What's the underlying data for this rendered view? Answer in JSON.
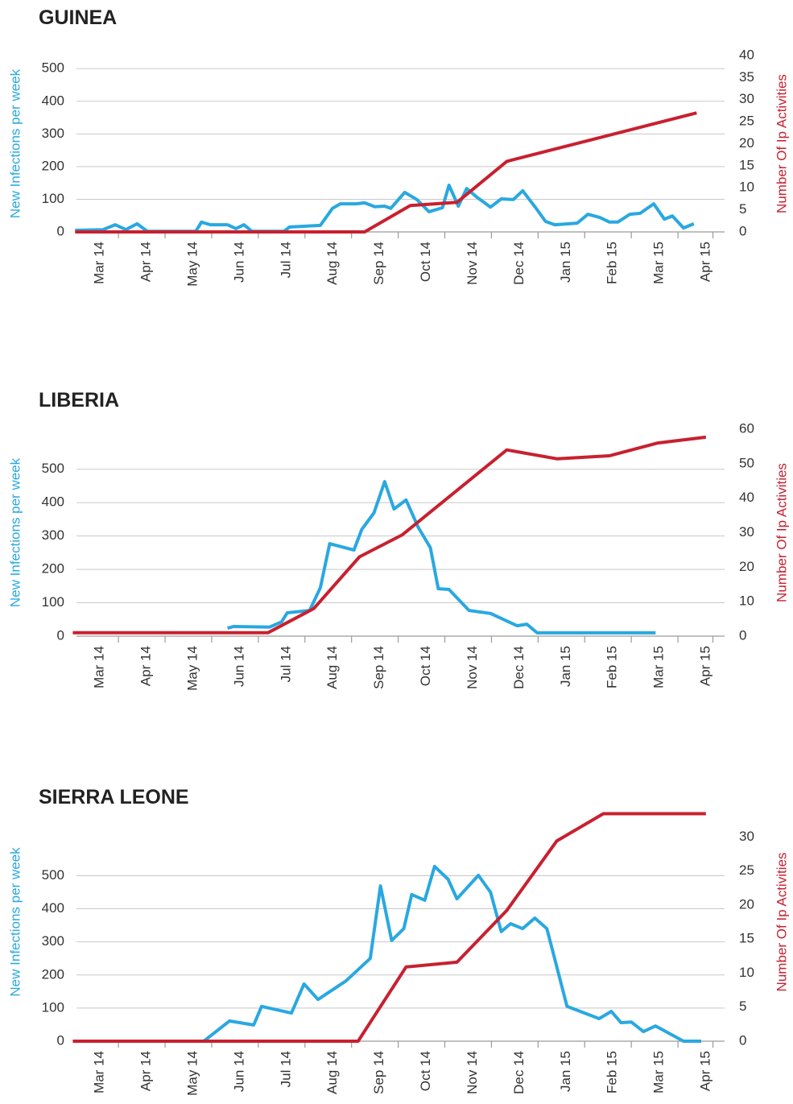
{
  "chart_data": [
    {
      "type": "line",
      "title": "GUINEA",
      "ylabel": "New Infections per week",
      "y2label": "Number Of Ip Activities",
      "xlim": [
        -0.4,
        13.5
      ],
      "xticks": [
        {
          "value": 0,
          "label": "Mar 14"
        },
        {
          "value": 1,
          "label": "Apr 14"
        },
        {
          "value": 2,
          "label": "May 14"
        },
        {
          "value": 3,
          "label": "Jun 14"
        },
        {
          "value": 4,
          "label": "Jul 14"
        },
        {
          "value": 5,
          "label": "Aug 14"
        },
        {
          "value": 6,
          "label": "Sep 14"
        },
        {
          "value": 7,
          "label": "Oct 14"
        },
        {
          "value": 8,
          "label": "Nov 14"
        },
        {
          "value": 9,
          "label": "Dec 14"
        },
        {
          "value": 10,
          "label": "Jan 15"
        },
        {
          "value": 11,
          "label": "Feb 15"
        },
        {
          "value": 12,
          "label": "Mar 15"
        },
        {
          "value": 13,
          "label": "Apr 15"
        }
      ],
      "ylim": [
        0,
        540
      ],
      "yticks": [
        0,
        100,
        200,
        300,
        400,
        500
      ],
      "y2lim": [
        0,
        40
      ],
      "y2ticks": [
        0,
        5,
        10,
        15,
        20,
        25,
        30,
        35,
        40
      ],
      "grid": true,
      "series": [
        {
          "color": "#29a8e0",
          "axis": "y",
          "x": [
            -0.43,
            0.17,
            0.43,
            0.66,
            0.9,
            1.12,
            2.16,
            2.28,
            2.47,
            2.84,
            3.02,
            3.19,
            3.36,
            4.05,
            4.17,
            4.83,
            5.09,
            5.26,
            5.6,
            5.78,
            6.0,
            6.21,
            6.34,
            6.64,
            6.9,
            7.16,
            7.45,
            7.59,
            7.79,
            7.97,
            8.19,
            8.48,
            8.71,
            8.97,
            9.17,
            9.45,
            9.66,
            9.86,
            10.34,
            10.57,
            10.83,
            11.03,
            11.21,
            11.47,
            11.69,
            11.98,
            12.21,
            12.38,
            12.62,
            12.84
          ],
          "values": [
            5,
            7,
            22,
            7,
            25,
            2,
            2,
            30,
            22,
            22,
            10,
            22,
            2,
            2,
            15,
            20,
            72,
            86,
            86,
            89,
            77,
            79,
            72,
            121,
            99,
            62,
            74,
            143,
            79,
            133,
            106,
            76,
            101,
            99,
            126,
            74,
            32,
            22,
            27,
            54,
            44,
            30,
            30,
            54,
            57,
            86,
            39,
            49,
            12,
            25
          ]
        },
        {
          "color": "#c8202f",
          "axis": "y2",
          "x": [
            -0.43,
            5.78,
            6.76,
            7.76,
            8.83,
            12.9
          ],
          "values": [
            0,
            0,
            6,
            6.7,
            16,
            27
          ]
        }
      ]
    },
    {
      "type": "line",
      "title": "LIBERIA",
      "ylabel": "New Infections per week",
      "y2label": "Number Of Ip Activities",
      "xlim": [
        -0.4,
        13.5
      ],
      "xticks": [
        {
          "value": 0,
          "label": "Mar 14"
        },
        {
          "value": 1,
          "label": "Apr 14"
        },
        {
          "value": 2,
          "label": "May 14"
        },
        {
          "value": 3,
          "label": "Jun 14"
        },
        {
          "value": 4,
          "label": "Jul 14"
        },
        {
          "value": 5,
          "label": "Aug 14"
        },
        {
          "value": 6,
          "label": "Sep 14"
        },
        {
          "value": 7,
          "label": "Oct 14"
        },
        {
          "value": 8,
          "label": "Nov 14"
        },
        {
          "value": 9,
          "label": "Dec 14"
        },
        {
          "value": 10,
          "label": "Jan 15"
        },
        {
          "value": 11,
          "label": "Feb 15"
        },
        {
          "value": 12,
          "label": "Mar 15"
        },
        {
          "value": 13,
          "label": "Apr 15"
        }
      ],
      "ylim": [
        0,
        620
      ],
      "yticks": [
        0,
        100,
        200,
        300,
        400,
        500
      ],
      "y2lim": [
        0,
        60
      ],
      "y2ticks": [
        0,
        10,
        20,
        30,
        40,
        50,
        60
      ],
      "grid": true,
      "series": [
        {
          "color": "#29a8e0",
          "axis": "y",
          "x": [
            2.84,
            2.97,
            3.74,
            4.0,
            4.12,
            4.6,
            4.83,
            5.03,
            5.55,
            5.72,
            5.98,
            6.21,
            6.41,
            6.67,
            6.93,
            7.19,
            7.36,
            7.59,
            8.02,
            8.48,
            9.05,
            9.26,
            9.48,
            12.02
          ],
          "values": [
            24,
            29,
            27,
            43,
            70,
            77,
            145,
            277,
            258,
            320,
            369,
            463,
            381,
            408,
            326,
            265,
            142,
            140,
            77,
            68,
            31,
            36,
            10,
            10
          ]
        },
        {
          "color": "#c8202f",
          "axis": "y2",
          "x": [
            -0.48,
            3.71,
            4.69,
            5.67,
            6.59,
            8.83,
            9.91,
            11.03,
            12.07,
            13.1
          ],
          "values": [
            1,
            1,
            8,
            23,
            29.4,
            54,
            51.4,
            52.3,
            56,
            57.7
          ]
        }
      ]
    },
    {
      "type": "line",
      "title": "SIERRA LEONE",
      "ylabel": "New Infections per week",
      "y2label": "Number Of Ip Activities",
      "xlim": [
        -0.4,
        13.5
      ],
      "xticks": [
        {
          "value": 0,
          "label": "Mar 14"
        },
        {
          "value": 1,
          "label": "Apr 14"
        },
        {
          "value": 2,
          "label": "May 14"
        },
        {
          "value": 3,
          "label": "Jun 14"
        },
        {
          "value": 4,
          "label": "Jul 14"
        },
        {
          "value": 5,
          "label": "Aug 14"
        },
        {
          "value": 6,
          "label": "Sep 14"
        },
        {
          "value": 7,
          "label": "Oct 14"
        },
        {
          "value": 8,
          "label": "Nov 14"
        },
        {
          "value": 9,
          "label": "Dec 14"
        },
        {
          "value": 10,
          "label": "Jan 15"
        },
        {
          "value": 11,
          "label": "Feb 15"
        },
        {
          "value": 12,
          "label": "Mar 15"
        },
        {
          "value": 13,
          "label": "Apr 15"
        }
      ],
      "ylim": [
        0,
        720
      ],
      "yticks": [
        0,
        100,
        200,
        300,
        400,
        500
      ],
      "y2lim": [
        0,
        35
      ],
      "y2ticks": [
        0,
        5,
        10,
        15,
        20,
        25,
        30
      ],
      "grid": true,
      "series": [
        {
          "color": "#29a8e0",
          "axis": "y",
          "x": [
            2.33,
            2.88,
            3.4,
            3.57,
            4.21,
            4.48,
            4.78,
            5.38,
            5.9,
            6.12,
            6.36,
            6.62,
            6.79,
            7.07,
            7.28,
            7.57,
            7.76,
            8.22,
            8.48,
            8.71,
            8.91,
            9.17,
            9.43,
            9.69,
            10.12,
            10.81,
            11.07,
            11.28,
            11.5,
            11.76,
            12.02,
            12.62,
            13.0
          ],
          "values": [
            0,
            61,
            49,
            105,
            85,
            173,
            126,
            182,
            250,
            469,
            304,
            340,
            443,
            426,
            528,
            489,
            430,
            501,
            450,
            331,
            355,
            340,
            372,
            340,
            105,
            68,
            90,
            56,
            58,
            29,
            46,
            0,
            0
          ]
        },
        {
          "color": "#c8202f",
          "axis": "y2",
          "x": [
            -0.48,
            5.64,
            6.67,
            7.76,
            8.83,
            9.9,
            10.9,
            13.1
          ],
          "values": [
            0,
            0,
            10.9,
            11.6,
            19.2,
            29.4,
            33.4,
            33.4
          ]
        }
      ]
    }
  ]
}
